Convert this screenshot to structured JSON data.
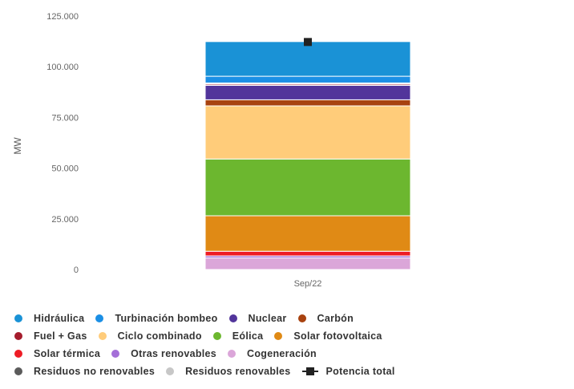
{
  "chart_data": {
    "type": "bar",
    "stacked": true,
    "categories": [
      "Sep/22"
    ],
    "ylabel": "MW",
    "ylim": [
      0,
      125000
    ],
    "yticks": [
      0,
      25000,
      50000,
      75000,
      100000,
      125000
    ],
    "ytick_labels": [
      "0",
      "25.000",
      "50.000",
      "75.000",
      "100.000",
      "125.000"
    ],
    "grid": false,
    "legend_position": "bottom",
    "series": [
      {
        "name": "Cogeneración",
        "values": [
          5700
        ],
        "color": "#dba6d9"
      },
      {
        "name": "Otras renovables",
        "values": [
          1000
        ],
        "color": "#a46fd8"
      },
      {
        "name": "Solar térmica",
        "values": [
          2300
        ],
        "color": "#ee1c25"
      },
      {
        "name": "Solar fotovoltaica",
        "values": [
          17500
        ],
        "color": "#e08a15"
      },
      {
        "name": "Eólica",
        "values": [
          28000
        ],
        "color": "#6cb72f"
      },
      {
        "name": "Ciclo combinado",
        "values": [
          26200
        ],
        "color": "#ffcc7a"
      },
      {
        "name": "Carbón",
        "values": [
          3000
        ],
        "color": "#a8420f"
      },
      {
        "name": "Nuclear",
        "values": [
          7100
        ],
        "color": "#52359b"
      },
      {
        "name": "Fuel + Gas",
        "values": [
          600
        ],
        "color": "#a51d2d"
      },
      {
        "name": "Residuos no renovables",
        "values": [
          400
        ],
        "color": "#5b5b5b"
      },
      {
        "name": "Residuos renovables",
        "values": [
          200
        ],
        "color": "#c7c7c7"
      },
      {
        "name": "Turbinación bombeo",
        "values": [
          3300
        ],
        "color": "#1b8fe5"
      },
      {
        "name": "Hidráulica",
        "values": [
          17100
        ],
        "color": "#1a92d6"
      }
    ],
    "total": {
      "name": "Potencia total",
      "values": [
        112200
      ],
      "color": "#222222"
    }
  },
  "legend": [
    [
      {
        "label": "Hidráulica",
        "color": "#1a92d6",
        "shape": "dot"
      },
      {
        "label": "Turbinación bombeo",
        "color": "#1b8fe5",
        "shape": "dot"
      },
      {
        "label": "Nuclear",
        "color": "#52359b",
        "shape": "dot"
      },
      {
        "label": "Carbón",
        "color": "#a8420f",
        "shape": "dot"
      }
    ],
    [
      {
        "label": "Fuel + Gas",
        "color": "#a51d2d",
        "shape": "dot"
      },
      {
        "label": "Ciclo combinado",
        "color": "#ffcc7a",
        "shape": "dot"
      },
      {
        "label": "Eólica",
        "color": "#6cb72f",
        "shape": "dot"
      },
      {
        "label": "Solar fotovoltaica",
        "color": "#e08a15",
        "shape": "dot"
      }
    ],
    [
      {
        "label": "Solar térmica",
        "color": "#ee1c25",
        "shape": "dot"
      },
      {
        "label": "Otras renovables",
        "color": "#a46fd8",
        "shape": "dot"
      },
      {
        "label": "Cogeneración",
        "color": "#dba6d9",
        "shape": "dot"
      }
    ],
    [
      {
        "label": "Residuos no renovables",
        "color": "#5b5b5b",
        "shape": "dot"
      },
      {
        "label": "Residuos renovables",
        "color": "#c7c7c7",
        "shape": "dot"
      },
      {
        "label": "Potencia total",
        "color": "#222222",
        "shape": "line"
      }
    ]
  ]
}
